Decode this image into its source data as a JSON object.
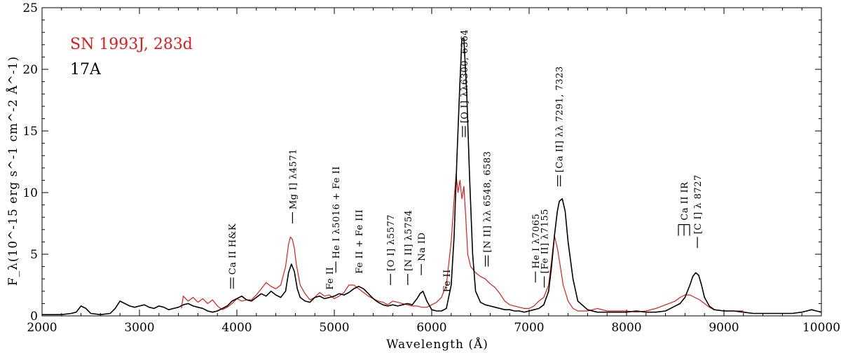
{
  "chart_data": {
    "type": "line",
    "title": "",
    "xlabel": "Wavelength (Å)",
    "ylabel": "F_λ(10^-15 erg s^-1 cm^-2 Å^-1)",
    "xlim": [
      2000,
      10000
    ],
    "ylim": [
      0,
      25
    ],
    "x_ticks": [
      2000,
      3000,
      4000,
      5000,
      6000,
      7000,
      8000,
      9000,
      10000
    ],
    "y_ticks": [
      0,
      5,
      10,
      15,
      20,
      25
    ],
    "grid": false,
    "legend_position": "top-left",
    "series": [
      {
        "name": "SN 1993J, 283d",
        "color": "#e41a1c",
        "x": [
          3430,
          3450,
          3500,
          3550,
          3600,
          3650,
          3700,
          3750,
          3800,
          3850,
          3900,
          3950,
          4000,
          4050,
          4100,
          4150,
          4200,
          4250,
          4300,
          4350,
          4400,
          4450,
          4500,
          4530,
          4550,
          4570,
          4590,
          4610,
          4650,
          4700,
          4750,
          4800,
          4850,
          4900,
          4950,
          5000,
          5050,
          5100,
          5150,
          5200,
          5250,
          5300,
          5350,
          5400,
          5450,
          5500,
          5550,
          5600,
          5650,
          5700,
          5750,
          5800,
          5850,
          5900,
          5950,
          6000,
          6050,
          6100,
          6150,
          6200,
          6230,
          6250,
          6270,
          6290,
          6310,
          6330,
          6350,
          6370,
          6400,
          6450,
          6500,
          6550,
          6600,
          6650,
          6700,
          6750,
          6800,
          6850,
          6900,
          6950,
          7000,
          7050,
          7100,
          7150,
          7200,
          7230,
          7260,
          7290,
          7320,
          7350,
          7400,
          7450,
          7500,
          7600,
          7700,
          7800,
          7900,
          8000,
          8100,
          8200,
          8300,
          8400,
          8500,
          8550,
          8600,
          8650,
          8700,
          8750,
          8800,
          8850,
          8900,
          9000,
          9100,
          9200
        ],
        "y": [
          0.6,
          1.6,
          1.2,
          1.5,
          1.1,
          1.4,
          1.0,
          1.3,
          0.8,
          0.5,
          0.7,
          1.0,
          1.4,
          1.2,
          1.3,
          1.3,
          1.7,
          2.2,
          2.7,
          2.4,
          2.2,
          2.5,
          4.0,
          5.8,
          6.4,
          6.2,
          5.5,
          4.2,
          2.5,
          1.8,
          1.3,
          1.5,
          1.9,
          1.6,
          1.7,
          1.4,
          1.6,
          1.9,
          2.5,
          2.5,
          2.2,
          1.9,
          1.6,
          1.4,
          1.2,
          1.1,
          0.9,
          1.2,
          1.1,
          1.0,
          0.9,
          0.8,
          0.8,
          0.7,
          0.7,
          0.9,
          1.1,
          1.5,
          2.5,
          6.0,
          9.5,
          11.5,
          10.0,
          11.0,
          9.5,
          10.5,
          8.0,
          5.0,
          4.0,
          3.5,
          3.2,
          3.0,
          2.6,
          2.3,
          1.8,
          1.2,
          0.9,
          0.8,
          0.7,
          0.6,
          0.6,
          0.8,
          1.2,
          1.5,
          2.5,
          4.5,
          6.5,
          5.5,
          4.0,
          2.5,
          1.2,
          0.6,
          0.4,
          0.4,
          0.6,
          0.4,
          0.4,
          0.4,
          0.3,
          0.4,
          0.6,
          0.9,
          1.2,
          1.5,
          1.7,
          1.7,
          1.5,
          1.3,
          1.0,
          0.7,
          0.5,
          0.4,
          0.4,
          0.4
        ]
      },
      {
        "name": "17A",
        "color": "#000000",
        "x": [
          2000,
          2100,
          2200,
          2300,
          2350,
          2400,
          2450,
          2500,
          2600,
          2700,
          2750,
          2800,
          2850,
          2900,
          2950,
          3000,
          3050,
          3100,
          3150,
          3200,
          3250,
          3300,
          3350,
          3400,
          3450,
          3500,
          3550,
          3600,
          3650,
          3700,
          3750,
          3800,
          3850,
          3900,
          3950,
          4000,
          4050,
          4100,
          4150,
          4200,
          4250,
          4300,
          4350,
          4400,
          4450,
          4500,
          4530,
          4560,
          4590,
          4620,
          4650,
          4700,
          4750,
          4800,
          4850,
          4900,
          4950,
          5000,
          5050,
          5100,
          5150,
          5200,
          5250,
          5300,
          5350,
          5400,
          5450,
          5500,
          5550,
          5600,
          5650,
          5700,
          5750,
          5800,
          5850,
          5880,
          5910,
          5950,
          6000,
          6050,
          6100,
          6150,
          6200,
          6230,
          6260,
          6290,
          6310,
          6330,
          6360,
          6390,
          6420,
          6450,
          6500,
          6550,
          6600,
          6650,
          6700,
          6750,
          6800,
          6850,
          6900,
          6950,
          7000,
          7050,
          7100,
          7150,
          7200,
          7230,
          7260,
          7290,
          7310,
          7340,
          7370,
          7400,
          7450,
          7500,
          7600,
          7700,
          7800,
          7900,
          8000,
          8100,
          8200,
          8300,
          8400,
          8450,
          8500,
          8550,
          8600,
          8650,
          8680,
          8710,
          8740,
          8770,
          8800,
          8850,
          8900,
          9000,
          9100,
          9200,
          9300,
          9400,
          9500,
          9600,
          9700,
          9800,
          9850,
          9900,
          9950,
          10000
        ],
        "y": [
          0.1,
          0.1,
          0.1,
          0.2,
          0.3,
          0.8,
          0.6,
          0.2,
          0.1,
          0.2,
          0.6,
          1.2,
          1.0,
          0.8,
          0.7,
          0.8,
          0.9,
          0.7,
          0.6,
          0.8,
          0.7,
          0.5,
          0.6,
          0.7,
          0.9,
          1.0,
          0.8,
          0.7,
          0.6,
          0.4,
          0.3,
          0.4,
          0.6,
          0.8,
          1.2,
          1.4,
          1.6,
          1.3,
          1.2,
          1.5,
          1.8,
          1.6,
          2.0,
          1.7,
          1.5,
          2.0,
          3.5,
          4.2,
          3.6,
          2.2,
          1.5,
          1.2,
          1.1,
          1.5,
          1.6,
          1.4,
          1.5,
          1.6,
          1.8,
          1.7,
          1.9,
          2.2,
          2.4,
          2.2,
          1.8,
          1.4,
          1.1,
          0.9,
          0.8,
          0.9,
          0.8,
          0.9,
          1.0,
          0.9,
          1.4,
          1.8,
          2.0,
          1.2,
          0.5,
          0.4,
          0.4,
          0.6,
          2.5,
          6.5,
          13.0,
          19.0,
          22.5,
          22.5,
          18.0,
          11.0,
          5.0,
          2.0,
          1.1,
          0.9,
          0.8,
          0.7,
          0.6,
          0.5,
          0.5,
          0.4,
          0.4,
          0.3,
          0.4,
          0.5,
          0.6,
          0.9,
          2.0,
          4.0,
          6.5,
          8.5,
          9.3,
          9.5,
          8.5,
          6.0,
          3.0,
          1.2,
          0.5,
          0.3,
          0.3,
          0.3,
          0.3,
          0.4,
          0.3,
          0.3,
          0.4,
          0.6,
          0.8,
          1.0,
          1.5,
          2.5,
          3.2,
          3.5,
          3.3,
          2.5,
          1.5,
          0.8,
          0.5,
          0.4,
          0.4,
          0.3,
          0.2,
          0.2,
          0.2,
          0.2,
          0.2,
          0.3,
          0.4,
          0.5,
          0.4,
          0.3
        ]
      }
    ],
    "annotations": [
      {
        "text": "Ca II H&K",
        "x": 3950,
        "y": 2.2,
        "marker": "double-tick"
      },
      {
        "text": "Mg I] λ4571",
        "x": 4571,
        "y": 7.5,
        "marker": "tick"
      },
      {
        "text": "Fe II",
        "x": 4950,
        "y": 2.0,
        "marker": "none"
      },
      {
        "text": "He I λ5016 + Fe II",
        "x": 5016,
        "y": 3.5,
        "marker": "tick"
      },
      {
        "text": "Fe II + Fe III",
        "x": 5250,
        "y": 3.3,
        "marker": "none"
      },
      {
        "text": "[O I] λ5577",
        "x": 5577,
        "y": 2.5,
        "marker": "tick"
      },
      {
        "text": "[N II] λ5754",
        "x": 5754,
        "y": 2.5,
        "marker": "tick"
      },
      {
        "text": "Na ID",
        "x": 5893,
        "y": 3.3,
        "marker": "tick"
      },
      {
        "text": "Fe II",
        "x": 6150,
        "y": 1.8,
        "marker": "none"
      },
      {
        "text": "[O I] λλ6300, 6364",
        "x": 6330,
        "y": 14.5,
        "marker": "double-tick"
      },
      {
        "text": "[N II] λλ 6548, 6583",
        "x": 6565,
        "y": 4.0,
        "marker": "double-tick"
      },
      {
        "text": "He I λ7065",
        "x": 7065,
        "y": 2.7,
        "marker": "tick"
      },
      {
        "text": "[Fe II] λ7155",
        "x": 7155,
        "y": 2.3,
        "marker": "tick"
      },
      {
        "text": "[Ca II] λλ 7291, 7323",
        "x": 7307,
        "y": 10.5,
        "marker": "double-tick"
      },
      {
        "text": "Ca II IR",
        "x": 8590,
        "y": 6.5,
        "marker": "triple-tick"
      },
      {
        "text": "[C I] λ 8727",
        "x": 8727,
        "y": 5.5,
        "marker": "tick"
      }
    ]
  }
}
